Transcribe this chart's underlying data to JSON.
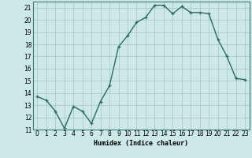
{
  "x": [
    0,
    1,
    2,
    3,
    4,
    5,
    6,
    7,
    8,
    9,
    10,
    11,
    12,
    13,
    14,
    15,
    16,
    17,
    18,
    19,
    20,
    21,
    22,
    23
  ],
  "y": [
    13.7,
    13.4,
    12.5,
    11.1,
    12.9,
    12.5,
    11.5,
    13.3,
    14.6,
    17.8,
    18.7,
    19.8,
    20.2,
    21.2,
    21.2,
    20.5,
    21.1,
    20.6,
    20.6,
    20.5,
    18.4,
    17.0,
    15.2,
    15.1
  ],
  "line_color": "#2e6b5e",
  "marker": "+",
  "bg_color": "#cce8e8",
  "grid_color": "#aacaca",
  "xlabel": "Humidex (Indice chaleur)",
  "ylim": [
    11,
    21.5
  ],
  "xlim": [
    -0.5,
    23.5
  ],
  "yticks": [
    11,
    12,
    13,
    14,
    15,
    16,
    17,
    18,
    19,
    20,
    21
  ],
  "xticks": [
    0,
    1,
    2,
    3,
    4,
    5,
    6,
    7,
    8,
    9,
    10,
    11,
    12,
    13,
    14,
    15,
    16,
    17,
    18,
    19,
    20,
    21,
    22,
    23
  ],
  "xlabel_fontsize": 6.0,
  "tick_fontsize": 5.5,
  "linewidth": 1.0,
  "markersize": 3.0
}
